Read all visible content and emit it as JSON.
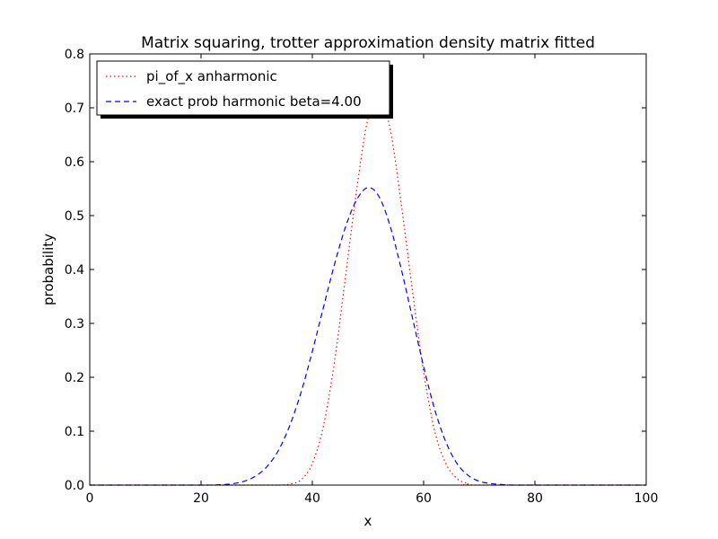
{
  "chart_data": {
    "type": "line",
    "title": "Matrix squaring, trotter approximation density matrix fitted",
    "xlabel": "x",
    "ylabel": "probability",
    "xlim": [
      0,
      100
    ],
    "ylim": [
      0,
      0.8
    ],
    "x_ticks": [
      "0",
      "20",
      "40",
      "60",
      "80",
      "100"
    ],
    "y_ticks": [
      "0.0",
      "0.1",
      "0.2",
      "0.3",
      "0.4",
      "0.5",
      "0.6",
      "0.7",
      "0.8"
    ],
    "grid": false,
    "legend_position": "top-left",
    "series": [
      {
        "name": "pi_of_x anharmonic",
        "color": "#ff0000",
        "style": "dotted",
        "x": [
          0,
          30,
          34,
          36,
          38,
          40,
          42,
          44,
          46,
          48,
          50,
          52,
          54,
          56,
          58,
          60,
          62,
          64,
          66,
          68,
          70,
          100
        ],
        "y": [
          0.0,
          0.0,
          0.0,
          0.002,
          0.01,
          0.04,
          0.11,
          0.23,
          0.39,
          0.55,
          0.68,
          0.72,
          0.66,
          0.52,
          0.36,
          0.21,
          0.1,
          0.04,
          0.012,
          0.003,
          0.0,
          0.0
        ]
      },
      {
        "name": "exact prob harmonic beta=4.00",
        "color": "#0000ff",
        "style": "dashed",
        "x": [
          0,
          20,
          24,
          26,
          28,
          30,
          32,
          34,
          36,
          38,
          40,
          42,
          44,
          46,
          48,
          50,
          52,
          54,
          56,
          58,
          60,
          62,
          64,
          66,
          68,
          70,
          72,
          74,
          76,
          80,
          100
        ],
        "y": [
          0.0,
          0.0,
          0.001,
          0.003,
          0.008,
          0.018,
          0.036,
          0.066,
          0.112,
          0.173,
          0.248,
          0.33,
          0.41,
          0.48,
          0.53,
          0.552,
          0.535,
          0.48,
          0.4,
          0.31,
          0.22,
          0.14,
          0.08,
          0.04,
          0.018,
          0.007,
          0.003,
          0.001,
          0.0,
          0.0,
          0.0
        ]
      }
    ]
  }
}
